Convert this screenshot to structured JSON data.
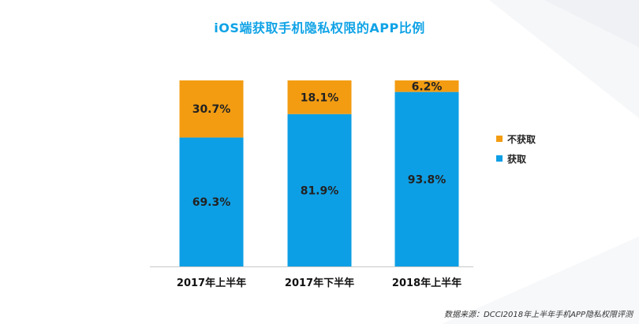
{
  "title": "iOS端获取手机隐私权限的APP比例",
  "source": "数据来源：DCCI2018年上半年手机APP隐私权限评测",
  "colors": {
    "title": "#10a3e6",
    "obtain": "#0d9fe5",
    "not_obtain": "#f39c12",
    "axis": "#c8c8c8"
  },
  "legend": [
    {
      "label": "不获取",
      "color": "#f39c12"
    },
    {
      "label": "获取",
      "color": "#0d9fe5"
    }
  ],
  "chart_data": {
    "type": "bar",
    "stacked": true,
    "title": "iOS端获取手机隐私权限的APP比例",
    "categories": [
      "2017年上半年",
      "2017年下半年",
      "2018年上半年"
    ],
    "series": [
      {
        "name": "获取",
        "values": [
          69.3,
          81.9,
          93.8
        ],
        "labels": [
          "69.3%",
          "81.9%",
          "93.8%"
        ]
      },
      {
        "name": "不获取",
        "values": [
          30.7,
          18.1,
          6.2
        ],
        "labels": [
          "30.7%",
          "18.1%",
          "6.2%"
        ]
      }
    ],
    "ylim": [
      0,
      100
    ],
    "xlabel": "",
    "ylabel": "",
    "legend_position": "right",
    "grid": false
  }
}
